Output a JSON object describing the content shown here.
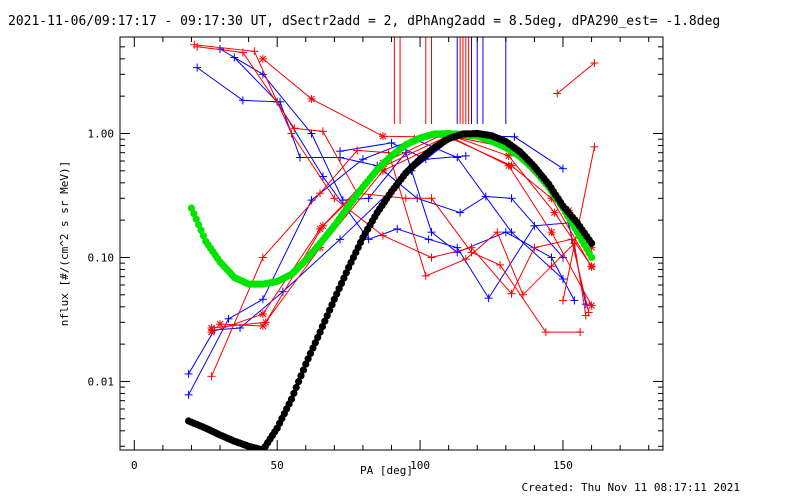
{
  "chart_title": "2021-11-06/09:17:17 - 09:17:30 UT, dSectr2add = 2, dPhAng2add = 8.5deg, dPA290_est= -1.8deg",
  "created_label": "Created: Thu Nov 11 08:17:11 2021",
  "chart_data": {
    "type": "scatter",
    "xlabel": "PA [deg]",
    "ylabel": "nflux [#/(cm^2 s sr MeV)]",
    "xlim": [
      -5,
      185
    ],
    "ylim": [
      0.0028,
      6.0
    ],
    "yscale": "log",
    "xticks": [
      0,
      50,
      100,
      150
    ],
    "xtick_labels": [
      "0",
      "50",
      "100",
      "150"
    ],
    "yticks": [
      0.01,
      0.1,
      1.0
    ],
    "ytick_labels": [
      "0.01",
      "0.10",
      "1.00"
    ],
    "grid": false,
    "legend": "none",
    "colors": {
      "blue": "#0000ff",
      "red": "#ff0000",
      "green": "#00e400",
      "black": "#000000"
    },
    "series": [
      {
        "color": "blue",
        "marker": "plus",
        "x": [
          19,
          28,
          37,
          52,
          72,
          97,
          113,
          133,
          150
        ],
        "y": [
          0.0115,
          0.026,
          0.027,
          0.053,
          0.14,
          0.5,
          0.98,
          0.94,
          0.52
        ]
      },
      {
        "color": "blue",
        "marker": "plus",
        "x": [
          19,
          33,
          45,
          62,
          80,
          98,
          113,
          132,
          150
        ],
        "y": [
          0.0078,
          0.032,
          0.046,
          0.29,
          0.62,
          0.9,
          0.64,
          0.16,
          0.067
        ]
      },
      {
        "color": "blue",
        "marker": "plus",
        "x": [
          22,
          38,
          51,
          58,
          72,
          85,
          99,
          114,
          123,
          132,
          150
        ],
        "y": [
          3.4,
          1.85,
          1.8,
          0.64,
          0.64,
          0.55,
          0.3,
          0.23,
          0.31,
          0.3,
          0.1
        ]
      },
      {
        "color": "blue",
        "marker": "plus",
        "x": [
          30,
          45,
          62,
          73,
          82,
          95,
          104,
          113,
          130,
          146,
          154
        ],
        "y": [
          4.8,
          3.0,
          1.0,
          0.29,
          0.3,
          0.7,
          0.16,
          0.11,
          0.16,
          0.1,
          0.045
        ]
      },
      {
        "color": "blue",
        "marker": "plus",
        "x": [
          35,
          50,
          66,
          82,
          92,
          103,
          113,
          124,
          140,
          152,
          158
        ],
        "y": [
          4.1,
          1.8,
          0.45,
          0.14,
          0.17,
          0.14,
          0.12,
          0.047,
          0.18,
          0.19,
          0.042
        ]
      },
      {
        "color": "blue",
        "marker": "plus",
        "x": [
          72,
          90,
          102,
          116
        ],
        "y": [
          0.72,
          0.84,
          0.62,
          0.66
        ]
      },
      {
        "color": "red",
        "marker": "plus",
        "x": [
          27,
          45,
          65,
          78,
          89,
          102,
          116,
          127,
          136,
          146,
          154,
          158
        ],
        "y": [
          0.011,
          0.1,
          0.33,
          0.73,
          0.7,
          0.071,
          0.097,
          0.16,
          0.05,
          0.085,
          0.13,
          0.034
        ]
      },
      {
        "color": "red",
        "marker": "plus",
        "x": [
          21,
          42,
          55,
          70,
          87,
          104,
          118,
          132,
          140,
          153,
          159
        ],
        "y": [
          5.2,
          4.6,
          1.0,
          0.3,
          0.15,
          0.1,
          0.12,
          0.051,
          0.12,
          0.14,
          0.036
        ]
      },
      {
        "color": "red",
        "marker": "plus",
        "x": [
          22,
          38,
          56,
          66,
          78,
          95,
          104,
          118,
          128,
          144,
          156
        ],
        "y": [
          5.0,
          4.5,
          1.1,
          1.04,
          0.33,
          0.3,
          0.3,
          0.11,
          0.087,
          0.025,
          0.025
        ]
      },
      {
        "color": "red",
        "marker": "star",
        "x": [
          27,
          46,
          66,
          87,
          108,
          132,
          146,
          160
        ],
        "y": [
          0.027,
          0.03,
          0.18,
          0.58,
          0.98,
          0.55,
          0.3,
          0.084
        ]
      },
      {
        "color": "red",
        "marker": "star",
        "x": [
          27,
          45,
          65,
          87,
          110,
          131,
          152,
          160
        ],
        "y": [
          0.025,
          0.035,
          0.17,
          0.54,
          0.96,
          0.77,
          0.24,
          0.12
        ]
      },
      {
        "color": "red",
        "marker": "star",
        "x": [
          30,
          45,
          65,
          87,
          112,
          131,
          147,
          160
        ],
        "y": [
          0.029,
          0.028,
          0.12,
          0.5,
          0.94,
          0.66,
          0.23,
          0.085
        ]
      },
      {
        "color": "red",
        "marker": "star",
        "x": [
          45,
          62,
          87,
          111,
          131,
          146,
          160
        ],
        "y": [
          4.0,
          1.9,
          0.95,
          0.93,
          0.55,
          0.16,
          0.041
        ]
      },
      {
        "color": "red",
        "marker": "plus",
        "x": [
          148,
          161
        ],
        "y": [
          2.1,
          3.7
        ]
      },
      {
        "color": "red",
        "marker": "plus",
        "x": [
          150,
          161
        ],
        "y": [
          0.045,
          0.78
        ]
      }
    ],
    "curves": [
      {
        "color": "green",
        "style": "thick-dots",
        "x": [
          20,
          25,
          30,
          35,
          40,
          45,
          50,
          55,
          60,
          65,
          70,
          75,
          80,
          85,
          90,
          95,
          100,
          105,
          110,
          115,
          120,
          125,
          130,
          135,
          140,
          145,
          150,
          155,
          160
        ],
        "y": [
          0.25,
          0.135,
          0.092,
          0.069,
          0.061,
          0.061,
          0.064,
          0.073,
          0.095,
          0.13,
          0.18,
          0.26,
          0.37,
          0.51,
          0.66,
          0.81,
          0.92,
          0.99,
          1.0,
          0.98,
          0.95,
          0.87,
          0.77,
          0.65,
          0.51,
          0.37,
          0.25,
          0.16,
          0.1
        ]
      },
      {
        "color": "black",
        "style": "thick-dots",
        "x": [
          19,
          25,
          30,
          35,
          40,
          45,
          50,
          55,
          60,
          65,
          70,
          75,
          80,
          85,
          90,
          95,
          100,
          105,
          110,
          115,
          120,
          125,
          130,
          135,
          140,
          145,
          150,
          155,
          160
        ],
        "y": [
          0.0048,
          0.0042,
          0.0037,
          0.0033,
          0.003,
          0.0028,
          0.0042,
          0.0072,
          0.0138,
          0.025,
          0.046,
          0.083,
          0.145,
          0.23,
          0.34,
          0.48,
          0.62,
          0.77,
          0.91,
          0.99,
          1.0,
          0.96,
          0.86,
          0.71,
          0.54,
          0.39,
          0.26,
          0.19,
          0.13
        ]
      }
    ],
    "vertical_markers": [
      {
        "color": "red",
        "x": [
          91,
          93,
          102,
          104,
          114,
          115,
          116,
          117
        ]
      },
      {
        "color": "blue",
        "x": [
          113,
          118,
          120,
          122,
          130
        ]
      }
    ]
  }
}
